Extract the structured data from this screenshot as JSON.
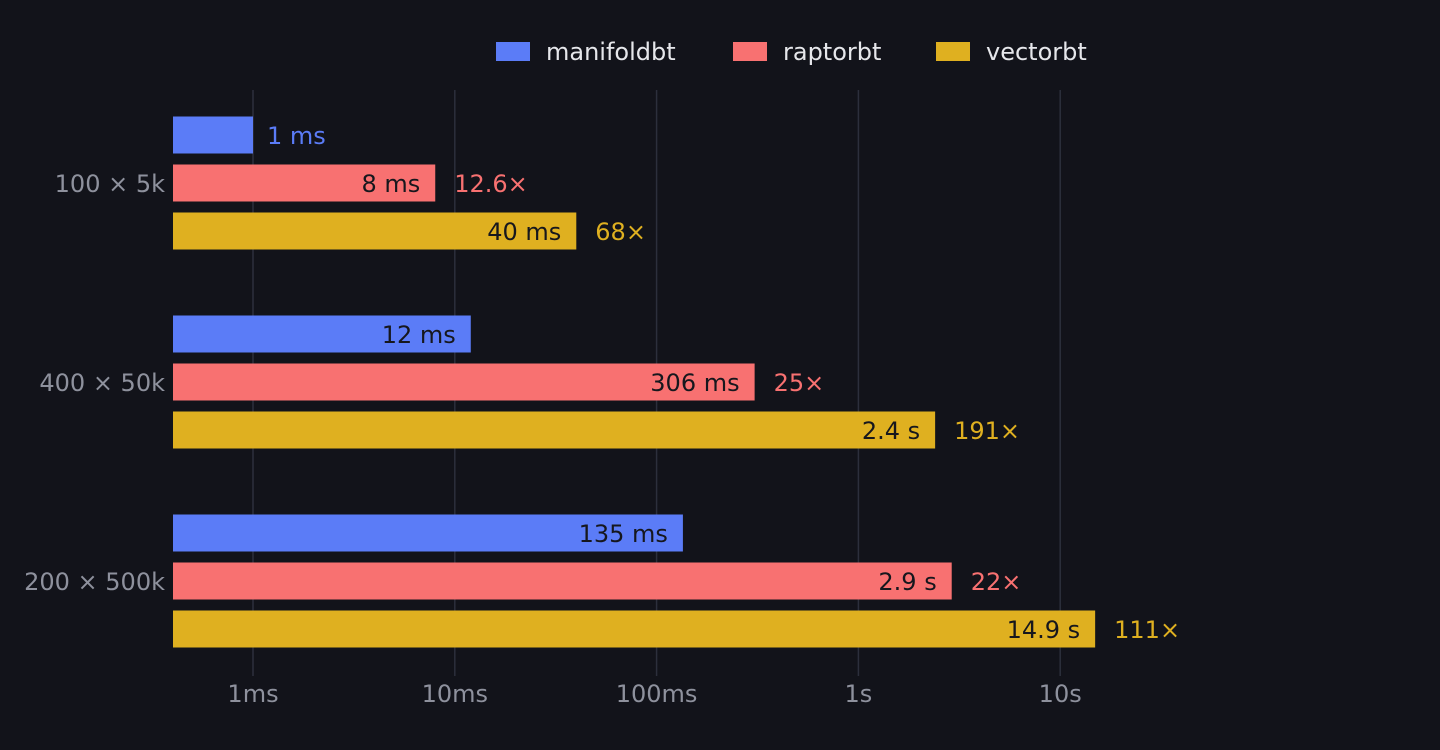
{
  "theme": {
    "background": "#12131a",
    "gridline": "#2c2f3c",
    "tick_label": "#8e919d",
    "legend_text": "#e6e7eb",
    "bar_text_dark": "#16171d"
  },
  "chart_data": {
    "type": "bar",
    "orientation": "horizontal",
    "x_scale": "log",
    "xlim_ms": [
      0.45,
      300000
    ],
    "grid": "vertical gridlines at each decade",
    "legend_position": "top-center",
    "xticks": [
      {
        "value_ms": 1,
        "label": "1ms"
      },
      {
        "value_ms": 10,
        "label": "10ms"
      },
      {
        "value_ms": 100,
        "label": "100ms"
      },
      {
        "value_ms": 1000,
        "label": "1s"
      },
      {
        "value_ms": 10000,
        "label": "10s"
      }
    ],
    "categories": [
      "100 × 5k",
      "400 × 50k",
      "200 × 500k"
    ],
    "series": [
      {
        "name": "manifoldbt",
        "color": "#5b7cf7",
        "values_ms": [
          1,
          12,
          135
        ],
        "value_labels": [
          "1 ms",
          "12 ms",
          "135 ms"
        ],
        "ratio_labels": [
          "",
          "",
          ""
        ]
      },
      {
        "name": "raptorbt",
        "color": "#f87171",
        "values_ms": [
          8,
          306,
          2900
        ],
        "value_labels": [
          "8 ms",
          "306 ms",
          "2.9 s"
        ],
        "ratio_labels": [
          "12.6×",
          "25×",
          "22×"
        ]
      },
      {
        "name": "vectorbt",
        "color": "#dfb020",
        "values_ms": [
          40,
          2400,
          14900
        ],
        "value_labels": [
          "40 ms",
          "2.4 s",
          "14.9 s"
        ],
        "ratio_labels": [
          "68×",
          "191×",
          "111×"
        ]
      }
    ]
  }
}
